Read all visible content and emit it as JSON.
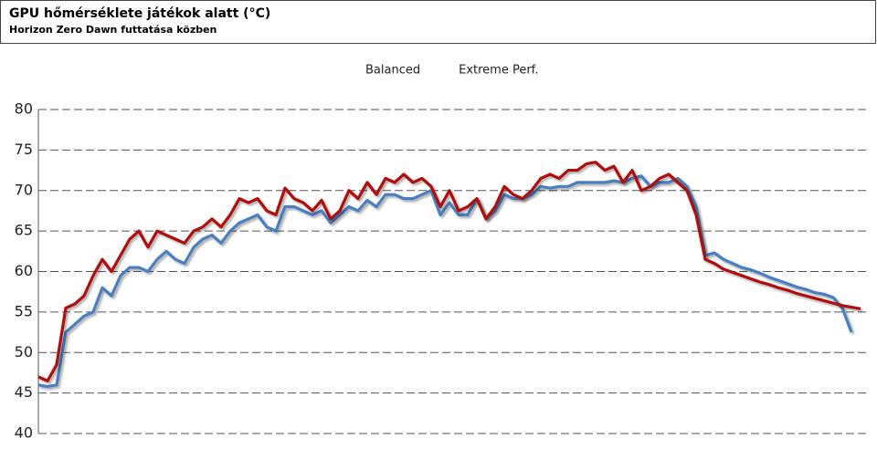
{
  "chart_data": {
    "type": "line",
    "title": "GPU hőmérséklete játékok alatt (°C)",
    "subtitle": "Horizon Zero Dawn futtatása közben",
    "categories": [
      null,
      null,
      null,
      null,
      null,
      null,
      null,
      null,
      null,
      null,
      null,
      null,
      null,
      null,
      null,
      null,
      null,
      null,
      null,
      null,
      null,
      null,
      null,
      null,
      null,
      null,
      null,
      null,
      null,
      null,
      null,
      null,
      null,
      null,
      null,
      null,
      null,
      null,
      null,
      null,
      null,
      null,
      null,
      null,
      null,
      null,
      null,
      null,
      null,
      null,
      null,
      null,
      null,
      null,
      null,
      null,
      null,
      null,
      null,
      null,
      null,
      null,
      null,
      null,
      null,
      null,
      null,
      null,
      null,
      null,
      null,
      null,
      null,
      null,
      null,
      null,
      null,
      null,
      null,
      null,
      null,
      null,
      null,
      null,
      null,
      null,
      null,
      null,
      null,
      null,
      null
    ],
    "series": [
      {
        "name": "Balanced",
        "color": "#4a7fc1",
        "values": [
          46,
          45.8,
          46,
          52.5,
          53.5,
          54.5,
          55,
          58,
          57,
          59.5,
          60.5,
          60.5,
          60,
          61.5,
          62.5,
          61.5,
          61,
          63,
          64,
          64.5,
          63.5,
          65,
          66,
          66.5,
          67,
          65.5,
          65,
          68,
          68,
          67.5,
          67,
          67.5,
          66,
          67,
          68,
          67.5,
          68.8,
          68,
          69.5,
          69.5,
          69,
          69,
          69.5,
          70,
          67,
          68.5,
          67,
          67,
          69,
          66.5,
          67.5,
          69.5,
          69,
          69,
          69.5,
          70.5,
          70.3,
          70.5,
          70.5,
          71,
          71,
          71,
          71,
          71.2,
          71,
          71.5,
          71.8,
          70.5,
          71,
          71,
          71.5,
          70.5,
          68,
          62,
          62.3,
          61.5,
          61,
          60.5,
          60.2,
          59.8,
          59.3,
          58.9,
          58.5,
          58.1,
          57.8,
          57.4,
          57.2,
          56.8,
          55.5,
          52.5,
          null
        ]
      },
      {
        "name": "Extreme Perf.",
        "color": "#b01010",
        "values": [
          47,
          46.5,
          48.5,
          55.5,
          56,
          57,
          59.5,
          61.5,
          60,
          62,
          64,
          65,
          63,
          65,
          64.5,
          64,
          63.5,
          65,
          65.5,
          66.5,
          65.5,
          67,
          69,
          68.5,
          69,
          67.5,
          67,
          70.3,
          69,
          68.5,
          67.5,
          68.8,
          66.5,
          67.5,
          70,
          69,
          71,
          69.5,
          71.5,
          71,
          72,
          71,
          71.5,
          70.5,
          68,
          70,
          67.5,
          68,
          69,
          66.5,
          68,
          70.5,
          69.5,
          69,
          70,
          71.5,
          72,
          71.5,
          72.5,
          72.5,
          73.3,
          73.5,
          72.5,
          73,
          71,
          72.5,
          70,
          70.5,
          71.5,
          72,
          71,
          70,
          67,
          61.5,
          61,
          60.3,
          59.9,
          59.5,
          59.1,
          58.7,
          58.4,
          58,
          57.7,
          57.3,
          57,
          56.7,
          56.4,
          56.1,
          55.8,
          55.6,
          55.4
        ]
      }
    ],
    "ylim": [
      40,
      80
    ],
    "yticks": [
      40,
      45,
      50,
      55,
      60,
      65,
      70,
      75,
      80
    ],
    "grid": true,
    "legend": "top"
  }
}
